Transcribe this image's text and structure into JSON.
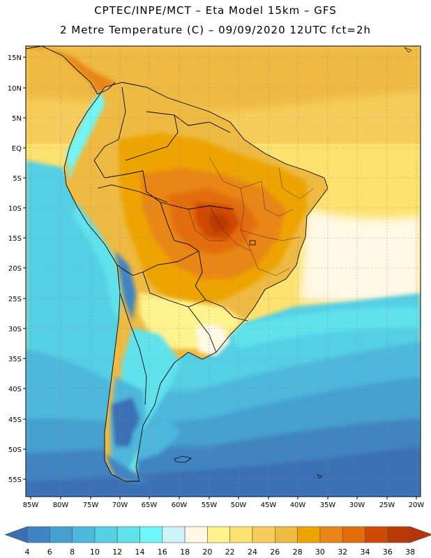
{
  "header": {
    "line1": "CPTEC/INPE/MCT –  Eta Model 15km – GFS",
    "line2": "2 Metre Temperature (C) – 09/09/2020 12UTC fct=2h"
  },
  "axes": {
    "lat_labels": [
      "15N",
      "10N",
      "5N",
      "EQ",
      "5S",
      "10S",
      "15S",
      "20S",
      "25S",
      "30S",
      "35S",
      "40S",
      "45S",
      "50S",
      "55S"
    ],
    "lon_labels": [
      "85W",
      "80W",
      "75W",
      "70W",
      "65W",
      "60W",
      "55W",
      "50W",
      "45W",
      "40W",
      "35W",
      "30W",
      "25W",
      "20W"
    ]
  },
  "legend": {
    "labels": [
      "4",
      "6",
      "8",
      "10",
      "12",
      "14",
      "16",
      "18",
      "20",
      "22",
      "24",
      "26",
      "28",
      "30",
      "32",
      "34",
      "36",
      "38"
    ],
    "colors": [
      "#3a6fb4",
      "#3f84c2",
      "#45a0cf",
      "#4db7dc",
      "#55cfe4",
      "#5fe2ec",
      "#6ff6f8",
      "#ccf4fa",
      "#fff8e4",
      "#fdf28c",
      "#fbe26e",
      "#f6cd5a",
      "#eeba42",
      "#eea400",
      "#e98619",
      "#e36d0b",
      "#cf4a05",
      "#b93a06",
      "#b3360b"
    ]
  }
}
